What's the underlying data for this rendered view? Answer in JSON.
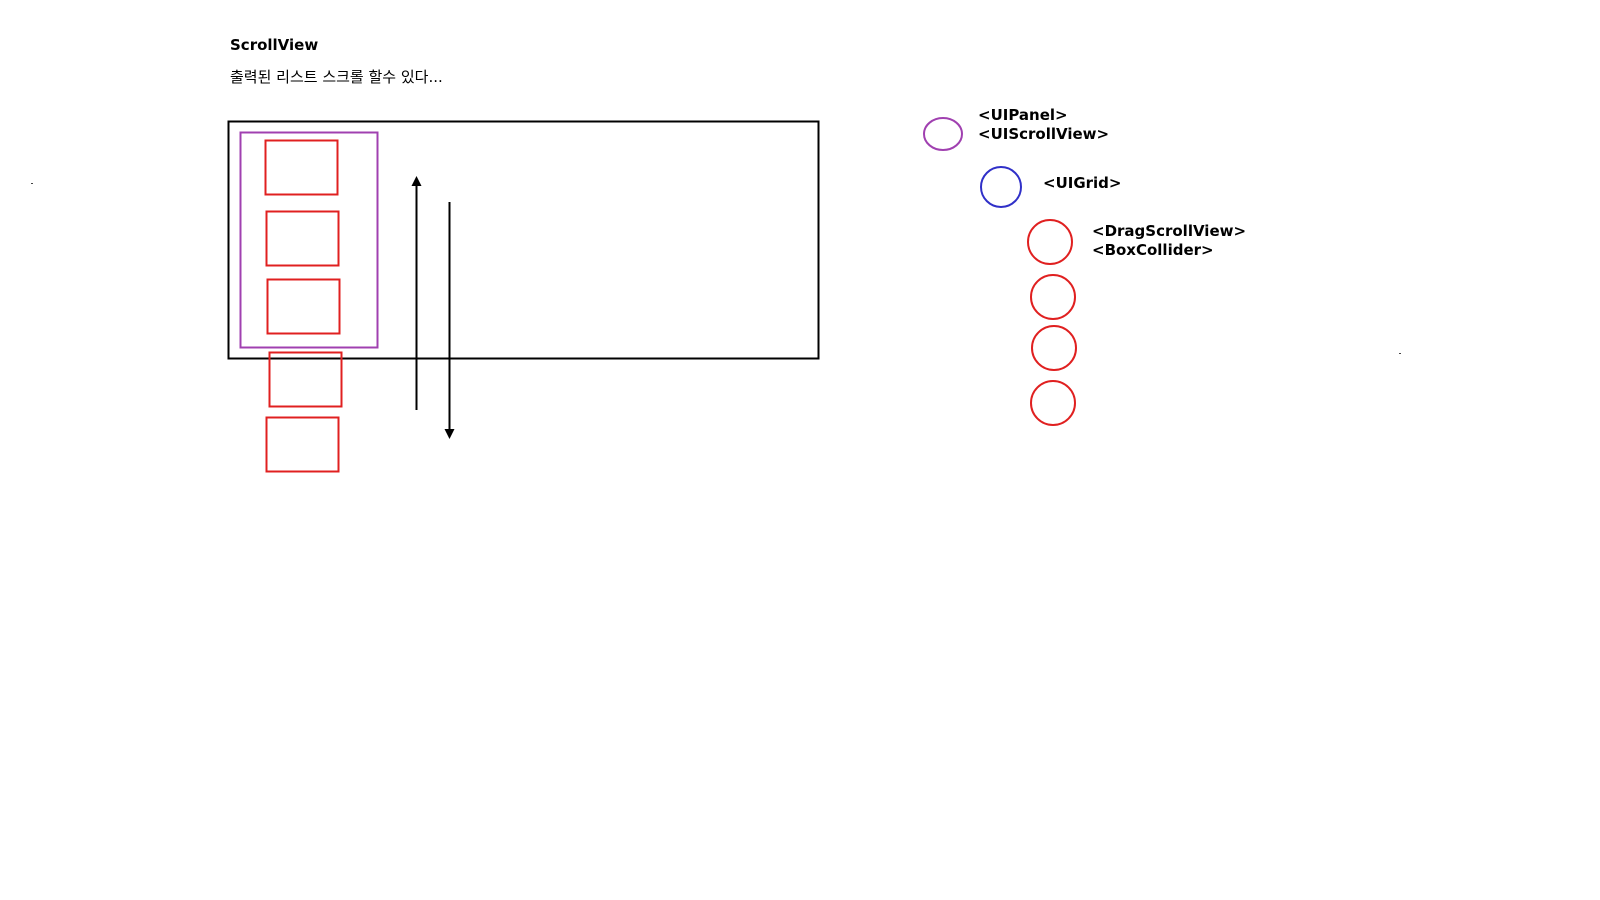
{
  "header": {
    "title": "ScrollView",
    "subtitle": "출력된 리스트 스크롤 할수 있다..."
  },
  "legend": {
    "panel_label_1": "<UIPanel>",
    "panel_label_2": "<UIScrollView>",
    "grid_label": "<UIGrid>",
    "item_label_1": "<DragScrollView>",
    "item_label_2": "<BoxCollider>"
  },
  "colors": {
    "panel": "#a040b0",
    "grid": "#3030c8",
    "item": "#e02020",
    "frame": "#000000"
  }
}
